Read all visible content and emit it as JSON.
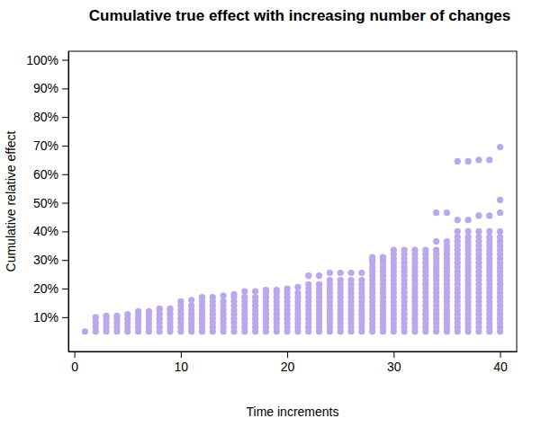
{
  "chart_data": {
    "type": "scatter",
    "title": "Cumulative true effect with increasing number of changes",
    "x_label": "Time increments",
    "y_label": "Cumulative relative effect",
    "color": "#baa8ec",
    "marker": "circle",
    "grid": false,
    "xlim": [
      -0.56,
      41.56
    ],
    "xticks": [
      0,
      10,
      20,
      30,
      40
    ],
    "ylim": [
      -2,
      103
    ],
    "yticks": [
      {
        "value": 10,
        "label": "10%"
      },
      {
        "value": 20,
        "label": "20%"
      },
      {
        "value": 30,
        "label": "30%"
      },
      {
        "value": 40,
        "label": "40%"
      },
      {
        "value": 50,
        "label": "50%"
      },
      {
        "value": 60,
        "label": "60%"
      },
      {
        "value": 70,
        "label": "70%"
      },
      {
        "value": 80,
        "label": "80%"
      },
      {
        "value": 90,
        "label": "90%"
      },
      {
        "value": 100,
        "label": "100%"
      }
    ],
    "x": [
      1,
      2,
      3,
      4,
      5,
      6,
      7,
      8,
      9,
      10,
      11,
      12,
      13,
      14,
      15,
      16,
      17,
      18,
      19,
      20,
      21,
      22,
      23,
      24,
      25,
      26,
      27,
      28,
      29,
      30,
      31,
      32,
      33,
      34,
      35,
      36,
      37,
      38,
      39,
      40
    ],
    "values": [
      [
        5
      ],
      [
        5,
        6.5,
        8,
        9.5,
        10
      ],
      [
        5,
        6.5,
        8,
        9.5,
        10.5
      ],
      [
        5,
        6.5,
        8,
        9.5,
        10.5
      ],
      [
        5,
        6.5,
        8,
        9.5,
        11
      ],
      [
        5,
        6.5,
        8,
        9.5,
        11,
        12
      ],
      [
        5,
        6.5,
        8,
        9.5,
        11,
        12
      ],
      [
        5,
        6.5,
        8,
        9.5,
        11,
        12.5,
        13
      ],
      [
        5,
        6.5,
        8,
        9.5,
        11,
        12.5,
        13
      ],
      [
        5,
        6.5,
        8,
        9.5,
        11,
        12.5,
        14,
        15.5
      ],
      [
        5,
        6.5,
        8,
        9.5,
        11,
        12.5,
        14,
        16
      ],
      [
        5,
        6.5,
        8,
        9.5,
        11,
        12.5,
        14,
        15.5,
        17
      ],
      [
        5,
        6.5,
        8,
        9.5,
        11,
        12.5,
        14,
        15.5,
        17
      ],
      [
        5,
        6.5,
        8,
        9.5,
        11,
        12.5,
        14,
        15.5,
        17.5
      ],
      [
        5,
        6.5,
        8,
        9.5,
        11,
        12.5,
        14,
        15.5,
        17,
        18
      ],
      [
        5,
        6.5,
        8,
        9.5,
        11,
        12.5,
        14,
        15.5,
        17,
        19
      ],
      [
        5,
        6.5,
        8,
        9.5,
        11,
        12.5,
        14,
        15.5,
        17,
        19
      ],
      [
        5,
        6.5,
        8,
        9.5,
        11,
        12.5,
        14,
        15.5,
        17,
        18.5,
        19.5
      ],
      [
        5,
        6.5,
        8,
        9.5,
        11,
        12.5,
        14,
        15.5,
        17,
        18.5,
        19.5
      ],
      [
        5,
        6.5,
        8,
        9.5,
        11,
        12.5,
        14,
        15.5,
        17,
        18.5,
        20
      ],
      [
        5,
        6.5,
        8,
        9.5,
        11,
        12.5,
        14,
        15.5,
        17,
        18.5,
        20.5
      ],
      [
        5,
        6.5,
        8,
        9.5,
        11,
        12.5,
        14,
        15.5,
        17,
        18.5,
        20,
        21.5,
        24.5
      ],
      [
        5,
        6.5,
        8,
        9.5,
        11,
        12.5,
        14,
        15.5,
        17,
        18.5,
        20,
        21.5,
        24.5
      ],
      [
        5,
        6.5,
        8,
        9.5,
        11,
        12.5,
        14,
        15.5,
        17,
        18.5,
        20,
        21.5,
        23,
        25.5
      ],
      [
        5,
        6.5,
        8,
        9.5,
        11,
        12.5,
        14,
        15.5,
        17,
        18.5,
        20,
        21.5,
        23,
        25.5
      ],
      [
        5,
        6.5,
        8,
        9.5,
        11,
        12.5,
        14,
        15.5,
        17,
        18.5,
        20,
        21.5,
        23,
        25.5
      ],
      [
        5,
        6.5,
        8,
        9.5,
        11,
        12.5,
        14,
        15.5,
        17,
        18.5,
        20,
        21.5,
        23,
        25.5
      ],
      [
        5,
        6.5,
        8,
        9.5,
        11,
        12.5,
        14,
        15.5,
        17,
        18.5,
        20,
        21.5,
        23,
        24.5,
        26,
        27.5,
        29,
        30,
        31
      ],
      [
        5,
        6.5,
        8,
        9.5,
        11,
        12.5,
        14,
        15.5,
        17,
        18.5,
        20,
        21.5,
        23,
        24.5,
        26,
        27.5,
        29,
        30,
        31
      ],
      [
        5,
        6.5,
        8,
        9.5,
        11,
        12.5,
        14,
        15.5,
        17,
        18.5,
        20,
        21.5,
        23,
        24.5,
        26,
        27.5,
        29,
        30.5,
        32,
        33.5
      ],
      [
        5,
        6.5,
        8,
        9.5,
        11,
        12.5,
        14,
        15.5,
        17,
        18.5,
        20,
        21.5,
        23,
        24.5,
        26,
        27.5,
        29,
        30.5,
        32,
        33.5
      ],
      [
        5,
        6.5,
        8,
        9.5,
        11,
        12.5,
        14,
        15.5,
        17,
        18.5,
        20,
        21.5,
        23,
        24.5,
        26,
        27.5,
        29,
        30.5,
        32,
        33.5
      ],
      [
        5,
        6.5,
        8,
        9.5,
        11,
        12.5,
        14,
        15.5,
        17,
        18.5,
        20,
        21.5,
        23,
        24.5,
        26,
        27.5,
        29,
        30.5,
        32,
        33.5
      ],
      [
        5,
        6.5,
        8,
        9.5,
        11,
        12.5,
        14,
        15.5,
        17,
        18.5,
        20,
        21.5,
        23,
        24.5,
        26,
        27.5,
        29,
        30.5,
        32,
        33.5,
        36.5,
        46.5
      ],
      [
        5,
        6.5,
        8,
        9.5,
        11,
        12.5,
        14,
        15.5,
        17,
        18.5,
        20,
        21.5,
        23,
        24.5,
        26,
        27.5,
        29,
        30.5,
        32,
        33.5,
        35,
        36.5,
        46.5
      ],
      [
        5,
        6.5,
        8,
        9.5,
        11,
        12.5,
        14,
        15.5,
        17,
        18.5,
        20,
        21.5,
        23,
        24.5,
        26,
        27.5,
        29,
        30.5,
        32,
        33.5,
        35,
        36.5,
        38,
        40,
        44,
        64.5
      ],
      [
        5,
        6.5,
        8,
        9.5,
        11,
        12.5,
        14,
        15.5,
        17,
        18.5,
        20,
        21.5,
        23,
        24.5,
        26,
        27.5,
        29,
        30.5,
        32,
        33.5,
        35,
        36.5,
        38,
        40,
        44,
        64.5
      ],
      [
        5,
        6.5,
        8,
        9.5,
        11,
        12.5,
        14,
        15.5,
        17,
        18.5,
        20,
        21.5,
        23,
        24.5,
        26,
        27.5,
        29,
        30.5,
        32,
        33.5,
        35,
        36.5,
        38,
        40,
        45.5,
        65
      ],
      [
        5,
        6.5,
        8,
        9.5,
        11,
        12.5,
        14,
        15.5,
        17,
        18.5,
        20,
        21.5,
        23,
        24.5,
        26,
        27.5,
        29,
        30.5,
        32,
        33.5,
        35,
        36.5,
        38,
        40,
        45.5,
        65
      ],
      [
        5,
        6.5,
        8,
        9.5,
        11,
        12.5,
        14,
        15.5,
        17,
        18.5,
        20,
        21.5,
        23,
        24.5,
        26,
        27.5,
        29,
        30.5,
        32,
        33.5,
        35,
        36.5,
        38,
        40,
        46.5,
        51,
        69.5
      ]
    ]
  }
}
